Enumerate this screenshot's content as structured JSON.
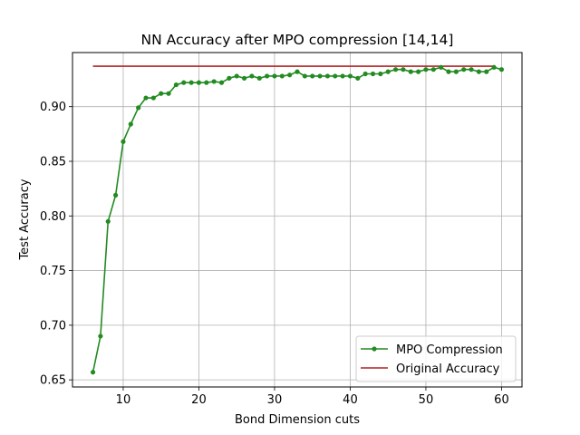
{
  "chart_data": {
    "type": "line",
    "title": "NN Accuracy after MPO compression [14,14]",
    "xlabel": "Bond Dimension cuts",
    "ylabel": "Test Accuracy",
    "xlim": [
      3.3,
      62.7
    ],
    "ylim": [
      0.6435,
      0.9495
    ],
    "xticks": [
      10,
      20,
      30,
      40,
      50,
      60
    ],
    "yticks": [
      0.65,
      0.7,
      0.75,
      0.8,
      0.85,
      0.9
    ],
    "ytick_labels": [
      "0.65",
      "0.70",
      "0.75",
      "0.80",
      "0.85",
      "0.90"
    ],
    "grid": true,
    "legend_position": "lower right",
    "series": [
      {
        "name": "MPO Compression",
        "color": "#228b22",
        "marker": "circle",
        "x": [
          6,
          7,
          8,
          9,
          10,
          11,
          12,
          13,
          14,
          15,
          16,
          17,
          18,
          19,
          20,
          21,
          22,
          23,
          24,
          25,
          26,
          27,
          28,
          29,
          30,
          31,
          32,
          33,
          34,
          35,
          36,
          37,
          38,
          39,
          40,
          41,
          42,
          43,
          44,
          45,
          46,
          47,
          48,
          49,
          50,
          51,
          52,
          53,
          54,
          55,
          56,
          57,
          58,
          59,
          60
        ],
        "y": [
          0.657,
          0.69,
          0.795,
          0.819,
          0.868,
          0.884,
          0.899,
          0.908,
          0.908,
          0.912,
          0.912,
          0.92,
          0.922,
          0.922,
          0.922,
          0.922,
          0.923,
          0.922,
          0.926,
          0.928,
          0.926,
          0.928,
          0.926,
          0.928,
          0.928,
          0.928,
          0.929,
          0.932,
          0.928,
          0.928,
          0.928,
          0.928,
          0.928,
          0.928,
          0.928,
          0.926,
          0.93,
          0.93,
          0.93,
          0.932,
          0.934,
          0.934,
          0.932,
          0.932,
          0.934,
          0.934,
          0.936,
          0.932,
          0.932,
          0.934,
          0.934,
          0.932,
          0.932,
          0.936,
          0.934
        ]
      },
      {
        "name": "Original Accuracy",
        "color": "#b22222",
        "marker": "none",
        "x": [
          6,
          59
        ],
        "y": [
          0.937,
          0.937
        ]
      }
    ]
  }
}
